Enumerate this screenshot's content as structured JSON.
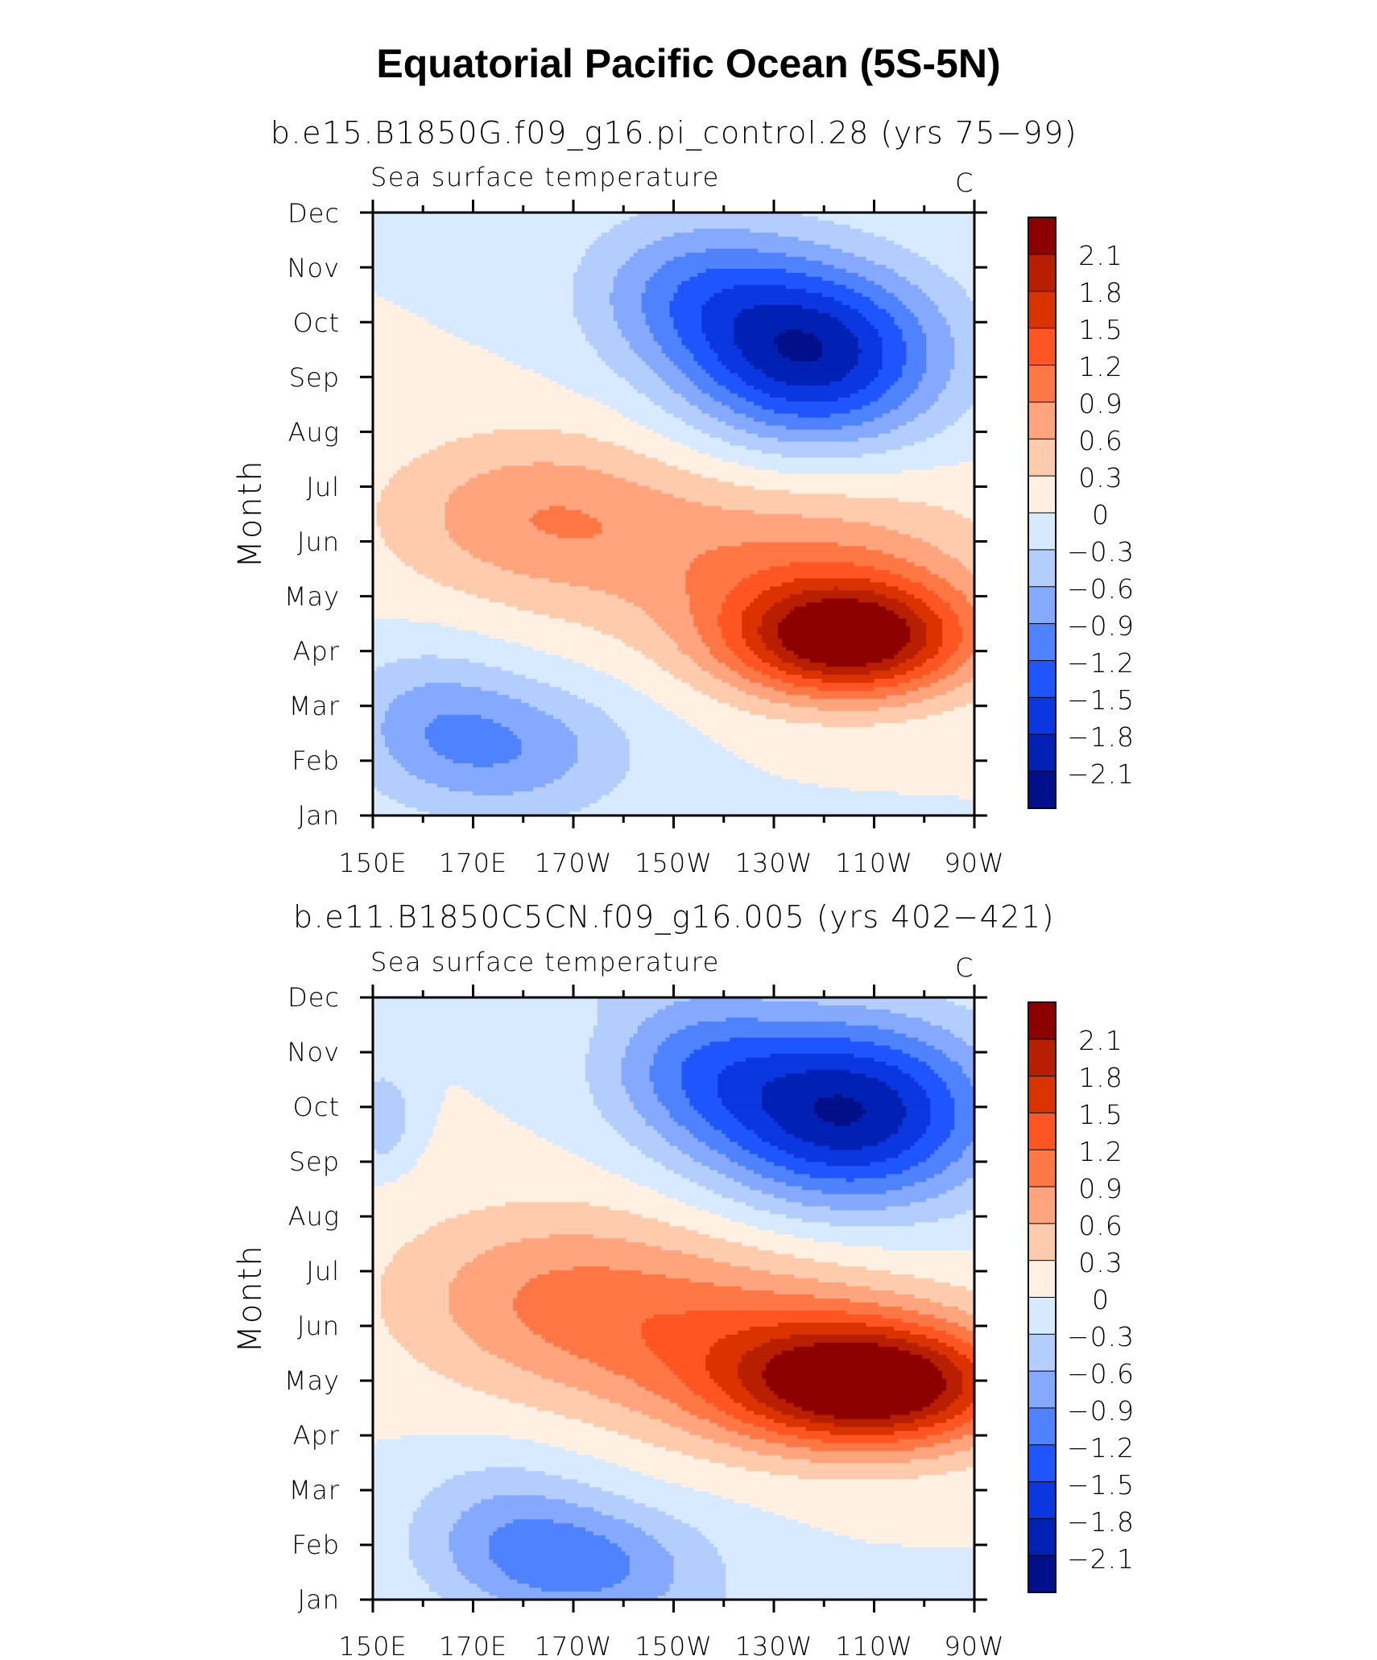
{
  "figure": {
    "title": "Equatorial Pacific Ocean (5S-5N)"
  },
  "chart_data": [
    {
      "type": "heatmap",
      "title": "b.e15.B1850G.f09_g16.pi_control.28 (yrs 75−99)",
      "subtitle_left": "Sea surface temperature",
      "subtitle_right": "C",
      "xlabel": "",
      "ylabel": "Month",
      "x_ticks": [
        "150E",
        "170E",
        "170W",
        "150W",
        "130W",
        "110W",
        "90W"
      ],
      "y_ticks": [
        "Jan",
        "Feb",
        "Mar",
        "Apr",
        "May",
        "Jun",
        "Jul",
        "Aug",
        "Sep",
        "Oct",
        "Nov",
        "Dec"
      ],
      "colorbar_labels": [
        "2.1",
        "1.8",
        "1.5",
        "1.2",
        "0.9",
        "0.6",
        "0.3",
        "0",
        "−0.3",
        "−0.6",
        "−0.9",
        "−1.2",
        "−1.5",
        "−1.8",
        "−2.1"
      ],
      "colorbar_colors": [
        "#8c0000",
        "#b81e00",
        "#db3300",
        "#ff5522",
        "#ff7744",
        "#ffa47c",
        "#ffcbad",
        "#fff0e2",
        "#d8eaff",
        "#b4cdff",
        "#84a9ff",
        "#4e82ff",
        "#1e55ff",
        "#0a37e0",
        "#0021b3",
        "#000f8a"
      ],
      "anomaly_features": [
        {
          "lon": 245,
          "month": 4.2,
          "amplitude": 2.25,
          "sigma_lon": 17,
          "sigma_month": 0.75
        },
        {
          "lon": 235,
          "month": 5.5,
          "amplitude": 0.85,
          "sigma_lon": 28,
          "sigma_month": 1.2
        },
        {
          "lon": 182,
          "month": 6.5,
          "amplitude": 0.8,
          "sigma_lon": 22,
          "sigma_month": 1.1
        },
        {
          "lon": 238,
          "month": 9.4,
          "amplitude": -2.0,
          "sigma_lon": 18,
          "sigma_month": 1.15
        },
        {
          "lon": 214,
          "month": 10.6,
          "amplitude": -0.85,
          "sigma_lon": 16,
          "sigma_month": 1.0
        },
        {
          "lon": 176,
          "month": 2.2,
          "amplitude": -0.85,
          "sigma_lon": 18,
          "sigma_month": 0.9
        },
        {
          "lon": 160,
          "month": 3.0,
          "amplitude": -0.4,
          "sigma_lon": 12,
          "sigma_month": 0.9
        }
      ]
    },
    {
      "type": "heatmap",
      "title": "b.e11.B1850C5CN.f09_g16.005 (yrs 402−421)",
      "subtitle_left": "Sea surface temperature",
      "subtitle_right": "C",
      "xlabel": "",
      "ylabel": "Month",
      "x_ticks": [
        "150E",
        "170E",
        "170W",
        "150W",
        "130W",
        "110W",
        "90W"
      ],
      "y_ticks": [
        "Jan",
        "Feb",
        "Mar",
        "Apr",
        "May",
        "Jun",
        "Jul",
        "Aug",
        "Sep",
        "Oct",
        "Nov",
        "Dec"
      ],
      "colorbar_labels": [
        "2.1",
        "1.8",
        "1.5",
        "1.2",
        "0.9",
        "0.6",
        "0.3",
        "0",
        "−0.3",
        "−0.6",
        "−0.9",
        "−1.2",
        "−1.5",
        "−1.8",
        "−2.1"
      ],
      "colorbar_colors": [
        "#8c0000",
        "#b81e00",
        "#db3300",
        "#ff5522",
        "#ff7744",
        "#ffa47c",
        "#ffcbad",
        "#fff0e2",
        "#d8eaff",
        "#b4cdff",
        "#84a9ff",
        "#4e82ff",
        "#1e55ff",
        "#0a37e0",
        "#0021b3",
        "#000f8a"
      ],
      "anomaly_features": [
        {
          "lon": 250,
          "month": 4.9,
          "amplitude": 2.35,
          "sigma_lon": 20,
          "sigma_month": 0.8
        },
        {
          "lon": 225,
          "month": 5.7,
          "amplitude": 0.9,
          "sigma_lon": 28,
          "sigma_month": 1.2
        },
        {
          "lon": 185,
          "month": 6.6,
          "amplitude": 0.75,
          "sigma_lon": 24,
          "sigma_month": 1.2
        },
        {
          "lon": 245,
          "month": 9.9,
          "amplitude": -2.1,
          "sigma_lon": 20,
          "sigma_month": 1.2
        },
        {
          "lon": 214,
          "month": 10.8,
          "amplitude": -0.8,
          "sigma_lon": 14,
          "sigma_month": 1.0
        },
        {
          "lon": 192,
          "month": 1.6,
          "amplitude": -0.95,
          "sigma_lon": 18,
          "sigma_month": 0.8
        },
        {
          "lon": 176,
          "month": 2.5,
          "amplitude": -0.5,
          "sigma_lon": 14,
          "sigma_month": 0.9
        },
        {
          "lon": 152,
          "month": 9.8,
          "amplitude": -0.6,
          "sigma_lon": 4,
          "sigma_month": 0.6
        }
      ]
    }
  ]
}
